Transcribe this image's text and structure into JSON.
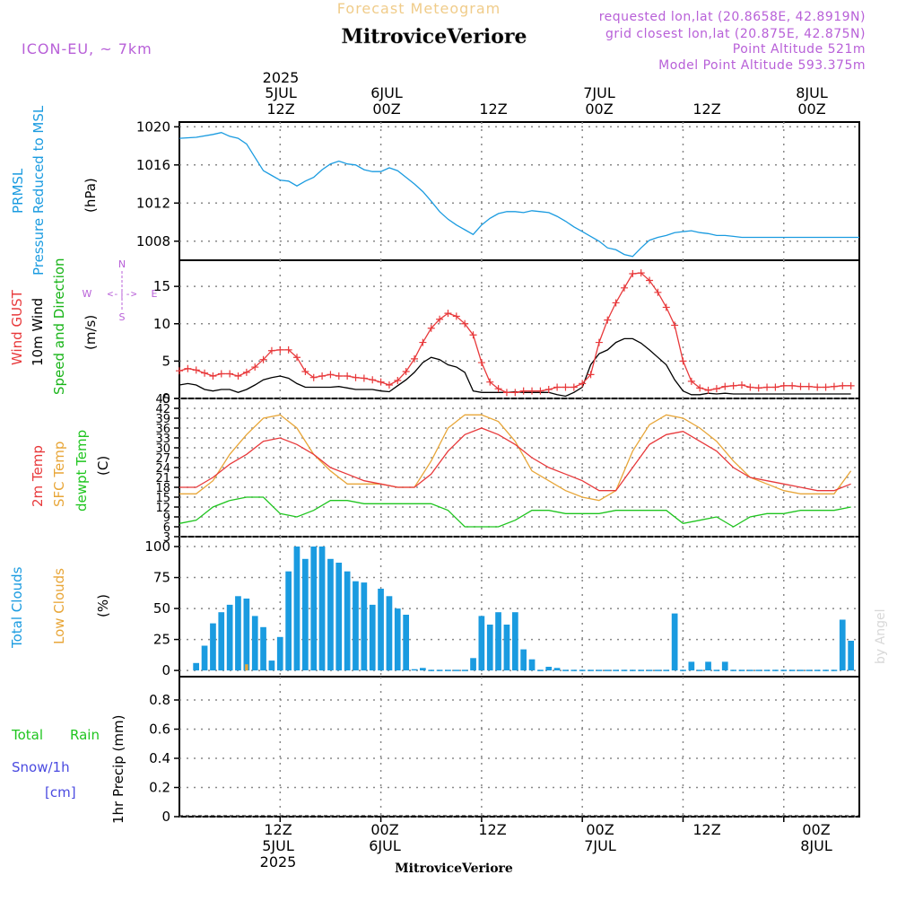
{
  "header": {
    "title": "Forecast Meteogram",
    "location": "MitroviceVeriore",
    "model": "ICON-EU, ~ 7km",
    "requested": "requested lon,lat (20.8658E, 42.8919N)",
    "closest": "grid closest lon,lat (20.875E, 42.875N)",
    "point_alt": "Point Altitude 521m",
    "model_alt": "Model Point Altitude 593.375m",
    "watermark": "by Angel"
  },
  "colors": {
    "pressure": "#1a9be0",
    "gust": "#e8393b",
    "wind": "#000000",
    "wind_dir_label": "#18b418",
    "temp2m": "#e8393b",
    "sfc_temp": "#e8a638",
    "dewpt": "#1fc51f",
    "total_clouds": "#1a9be0",
    "low_clouds": "#e8a638",
    "rain_label": "#1fc51f",
    "snow_label": "#4a4ae0",
    "header_purple": "#b860d8",
    "title_orange": "#f0cc8a"
  },
  "time_axis": {
    "top_labels": [
      {
        "line1": "2025",
        "line2": "5JUL",
        "line3": "12Z"
      },
      {
        "line1": "",
        "line2": "6JUL",
        "line3": "00Z"
      },
      {
        "line1": "",
        "line2": "",
        "line3": "12Z"
      },
      {
        "line1": "",
        "line2": "7JUL",
        "line3": "00Z"
      },
      {
        "line1": "",
        "line2": "",
        "line3": "12Z"
      },
      {
        "line1": "",
        "line2": "8JUL",
        "line3": "00Z"
      }
    ],
    "bottom_labels": [
      {
        "line1": "12Z",
        "line2": "5JUL",
        "line3": "2025"
      },
      {
        "line1": "00Z",
        "line2": "6JUL",
        "line3": ""
      },
      {
        "line1": "12Z",
        "line2": "",
        "line3": ""
      },
      {
        "line1": "00Z",
        "line2": "7JUL",
        "line3": ""
      },
      {
        "line1": "12Z",
        "line2": "",
        "line3": ""
      },
      {
        "line1": "00Z",
        "line2": "8JUL",
        "line3": ""
      }
    ],
    "bottom_location": "MitroviceVeriore"
  },
  "panels": {
    "pressure": {
      "label1": "PRMSL",
      "label2": "Pressure Reduced to MSL",
      "unit": "(hPa)",
      "ticks": [
        "1008",
        "1012",
        "1016",
        "1020"
      ]
    },
    "wind": {
      "label_gust": "Wind GUST",
      "label_wind": "10m Wind",
      "label_dir": "Speed and Direction",
      "unit": "(m/s)",
      "ticks": [
        "0",
        "5",
        "10",
        "15"
      ],
      "compass": {
        "n": "N",
        "s": "S",
        "w": "W",
        "e": "E"
      }
    },
    "temp": {
      "label_2m": "2m Temp",
      "label_sfc": "SFC Temp",
      "label_dew": "dewpt Temp",
      "unit": "(C)",
      "ticks": [
        "3",
        "6",
        "9",
        "12",
        "15",
        "18",
        "21",
        "24",
        "27",
        "30",
        "33",
        "36",
        "39",
        "42",
        "45"
      ]
    },
    "clouds": {
      "label_total": "Total Clouds",
      "label_low": "Low Clouds",
      "unit": "(%)",
      "ticks": [
        "0",
        "25",
        "50",
        "75",
        "100"
      ]
    },
    "precip": {
      "label_rain_a": "Total",
      "label_rain_b": "Rain",
      "label_snow": "Snow/1h",
      "label_cm": "[cm]",
      "axis_label": "1hr Precip (mm)",
      "ticks": [
        "0",
        "0.2",
        "0.4",
        "0.6",
        "0.8"
      ]
    }
  },
  "chart_data": {
    "type": "line",
    "x_unit": "hours from 2025-07-05 00Z",
    "x_range": [
      0,
      81
    ],
    "pressure_hPa": {
      "x": [
        0,
        2,
        4,
        5,
        6,
        7,
        8,
        9,
        10,
        11,
        12,
        13,
        14,
        15,
        16,
        17,
        18,
        19,
        20,
        21,
        22,
        23,
        24,
        25,
        26,
        27,
        28,
        29,
        30,
        31,
        32,
        33,
        34,
        35,
        36,
        37,
        38,
        39,
        40,
        41,
        42,
        43,
        44,
        45,
        46,
        47,
        48,
        49,
        50,
        51,
        52,
        53,
        54,
        55,
        56,
        57,
        58,
        59,
        60,
        61,
        62,
        63,
        64,
        65,
        66,
        67,
        68,
        69,
        70,
        71,
        72,
        73,
        74,
        75,
        76,
        77,
        78,
        79,
        80,
        81
      ],
      "y": [
        1018.8,
        1018.9,
        1019.2,
        1019.4,
        1019.0,
        1018.8,
        1018.2,
        1016.8,
        1015.4,
        1014.9,
        1014.4,
        1014.3,
        1013.8,
        1014.3,
        1014.7,
        1015.5,
        1016.1,
        1016.4,
        1016.1,
        1016.0,
        1015.5,
        1015.3,
        1015.3,
        1015.7,
        1015.4,
        1014.7,
        1014.0,
        1013.2,
        1012.2,
        1011.1,
        1010.3,
        1009.7,
        1009.2,
        1008.7,
        1009.7,
        1010.4,
        1010.9,
        1011.1,
        1011.1,
        1011.0,
        1011.2,
        1011.1,
        1011.0,
        1010.6,
        1010.1,
        1009.5,
        1009.0,
        1008.5,
        1008.0,
        1007.3,
        1007.1,
        1006.6,
        1006.4,
        1007.3,
        1008.1,
        1008.4,
        1008.6,
        1008.9,
        1009.0,
        1009.1,
        1008.9,
        1008.8,
        1008.6,
        1008.6,
        1008.5,
        1008.4,
        1008.4,
        1008.4,
        1008.4,
        1008.4,
        1008.4,
        1008.4,
        1008.4,
        1008.4,
        1008.4,
        1008.4,
        1008.4,
        1008.4,
        1008.4,
        1008.4
      ]
    },
    "wind_gust_ms": {
      "x": [
        0,
        1,
        2,
        3,
        4,
        5,
        6,
        7,
        8,
        9,
        10,
        11,
        12,
        13,
        14,
        15,
        16,
        17,
        18,
        19,
        20,
        21,
        22,
        23,
        24,
        25,
        26,
        27,
        28,
        29,
        30,
        31,
        32,
        33,
        34,
        35,
        36,
        37,
        38,
        39,
        40,
        41,
        42,
        43,
        44,
        45,
        46,
        47,
        48,
        49,
        50,
        51,
        52,
        53,
        54,
        55,
        56,
        57,
        58,
        59,
        60,
        61,
        62,
        63,
        64,
        65,
        66,
        67,
        68,
        69,
        70,
        71,
        72,
        73,
        74,
        75,
        76,
        77,
        78,
        79,
        80
      ],
      "y": [
        3.7,
        4.0,
        3.8,
        3.4,
        3.0,
        3.3,
        3.3,
        3.0,
        3.5,
        4.2,
        5.2,
        6.4,
        6.5,
        6.5,
        5.5,
        3.6,
        2.8,
        3.0,
        3.2,
        3.0,
        3.0,
        2.8,
        2.7,
        2.5,
        2.2,
        1.8,
        2.4,
        3.6,
        5.3,
        7.5,
        9.4,
        10.6,
        11.4,
        11.0,
        10.0,
        8.5,
        4.8,
        2.2,
        1.3,
        0.8,
        0.8,
        1.0,
        1.0,
        1.0,
        1.2,
        1.5,
        1.5,
        1.5,
        2.0,
        3.2,
        7.5,
        10.5,
        12.8,
        14.8,
        16.7,
        16.8,
        15.8,
        14.2,
        12.2,
        9.8,
        5.0,
        2.3,
        1.4,
        1.1,
        1.3,
        1.6,
        1.7,
        1.8,
        1.5,
        1.4,
        1.5,
        1.5,
        1.7,
        1.7,
        1.6,
        1.6,
        1.5,
        1.5,
        1.6,
        1.7,
        1.7
      ]
    },
    "wind_10m_ms": {
      "x": [
        0,
        1,
        2,
        3,
        4,
        5,
        6,
        7,
        8,
        9,
        10,
        11,
        12,
        13,
        14,
        15,
        16,
        17,
        18,
        19,
        20,
        21,
        22,
        23,
        24,
        25,
        26,
        27,
        28,
        29,
        30,
        31,
        32,
        33,
        34,
        35,
        36,
        37,
        38,
        39,
        40,
        41,
        42,
        43,
        44,
        45,
        46,
        47,
        48,
        49,
        50,
        51,
        52,
        53,
        54,
        55,
        56,
        57,
        58,
        59,
        60,
        61,
        62,
        63,
        64,
        65,
        66,
        67,
        68,
        69,
        70,
        71,
        72,
        73,
        74,
        75,
        76,
        77,
        78,
        79,
        80
      ],
      "y": [
        1.8,
        2.0,
        1.8,
        1.2,
        1.0,
        1.2,
        1.2,
        0.8,
        1.2,
        1.8,
        2.5,
        2.8,
        3.0,
        2.7,
        2.0,
        1.5,
        1.5,
        1.5,
        1.5,
        1.6,
        1.4,
        1.2,
        1.2,
        1.2,
        1.0,
        0.9,
        1.7,
        2.5,
        3.5,
        4.8,
        5.5,
        5.2,
        4.5,
        4.2,
        3.5,
        1.0,
        0.8,
        0.8,
        0.8,
        0.8,
        0.9,
        0.8,
        0.8,
        0.8,
        0.8,
        0.5,
        0.3,
        0.8,
        1.5,
        4.5,
        6.0,
        6.5,
        7.5,
        8.0,
        8.0,
        7.4,
        6.5,
        5.5,
        4.5,
        2.5,
        1.0,
        0.5,
        0.5,
        0.7,
        0.6,
        0.7,
        0.6,
        0.6,
        0.6,
        0.6,
        0.6,
        0.6,
        0.6,
        0.6,
        0.6,
        0.6,
        0.6,
        0.6,
        0.6,
        0.6,
        0.6
      ]
    },
    "temp_2m_C": {
      "x": [
        0,
        2,
        4,
        6,
        8,
        10,
        12,
        14,
        16,
        18,
        20,
        22,
        24,
        26,
        28,
        30,
        32,
        34,
        36,
        38,
        40,
        42,
        44,
        46,
        48,
        50,
        52,
        54,
        56,
        58,
        60,
        62,
        64,
        66,
        68,
        70,
        72,
        74,
        76,
        78,
        80
      ],
      "y": [
        18,
        18,
        21,
        25,
        28,
        32,
        33,
        31,
        28,
        24,
        22,
        20,
        19,
        18,
        18,
        22,
        29,
        34,
        36,
        34,
        31,
        27,
        24,
        22,
        20,
        17,
        17,
        24,
        31,
        34,
        35,
        32,
        29,
        24,
        21,
        20,
        19,
        18,
        17,
        17,
        19
      ]
    },
    "temp_sfc_C": {
      "x": [
        0,
        2,
        4,
        6,
        8,
        10,
        12,
        14,
        16,
        18,
        20,
        22,
        24,
        26,
        28,
        30,
        32,
        34,
        36,
        38,
        40,
        42,
        44,
        46,
        48,
        50,
        52,
        54,
        56,
        58,
        60,
        62,
        64,
        66,
        68,
        70,
        72,
        74,
        76,
        78,
        80
      ],
      "y": [
        16,
        16,
        20,
        28,
        34,
        39,
        40,
        36,
        28,
        23,
        19,
        19,
        19,
        18,
        18,
        26,
        36,
        40,
        40,
        38,
        32,
        23,
        20,
        17,
        15,
        14,
        17,
        29,
        37,
        40,
        39,
        36,
        32,
        26,
        21,
        19,
        17,
        16,
        16,
        16,
        23
      ]
    },
    "dewpt_C": {
      "x": [
        0,
        2,
        4,
        6,
        8,
        10,
        12,
        14,
        16,
        18,
        20,
        22,
        24,
        26,
        28,
        30,
        32,
        34,
        36,
        38,
        40,
        42,
        44,
        46,
        48,
        50,
        52,
        54,
        56,
        58,
        60,
        62,
        64,
        66,
        68,
        70,
        72,
        74,
        76,
        78,
        80
      ],
      "y": [
        7,
        8,
        12,
        14,
        15,
        15,
        10,
        9,
        11,
        14,
        14,
        13,
        13,
        13,
        13,
        13,
        11,
        6,
        6,
        6,
        8,
        11,
        11,
        10,
        10,
        10,
        11,
        11,
        11,
        11,
        7,
        8,
        9,
        6,
        9,
        10,
        10,
        11,
        11,
        11,
        12
      ]
    },
    "total_clouds_pct": {
      "x": [
        2,
        3,
        4,
        5,
        6,
        7,
        8,
        9,
        10,
        11,
        12,
        13,
        14,
        15,
        16,
        17,
        18,
        19,
        20,
        21,
        22,
        23,
        24,
        25,
        26,
        27,
        28,
        29,
        30,
        31,
        32,
        33,
        34,
        35,
        36,
        37,
        38,
        39,
        40,
        41,
        42,
        43,
        44,
        45,
        46,
        47,
        48,
        49,
        50,
        51,
        52,
        53,
        54,
        55,
        56,
        57,
        58,
        59,
        60,
        61,
        62,
        63,
        64,
        65,
        66,
        67,
        68,
        69,
        70,
        71,
        72,
        73,
        74,
        75,
        76,
        77,
        78,
        79,
        80
      ],
      "y": [
        6,
        20,
        38,
        47,
        53,
        60,
        58,
        44,
        35,
        8,
        27,
        80,
        100,
        90,
        100,
        100,
        90,
        87,
        80,
        72,
        71,
        53,
        66,
        60,
        50,
        45,
        1,
        2,
        0,
        0,
        0,
        0,
        0,
        10,
        44,
        37,
        47,
        37,
        47,
        17,
        9,
        0,
        3,
        2,
        0,
        0,
        0,
        0,
        0,
        0,
        0,
        0,
        0,
        0,
        0,
        0,
        0,
        46,
        0,
        7,
        0,
        7,
        0,
        7,
        0,
        0,
        0,
        0,
        0,
        0,
        0,
        0,
        0,
        0,
        0,
        0,
        0,
        41,
        24
      ]
    },
    "low_clouds_pct": {
      "x": [
        8
      ],
      "y": [
        5
      ]
    },
    "precip_mm": {
      "x": [],
      "y": []
    },
    "ylim_pressure": [
      1006,
      1020.5
    ],
    "ylim_wind": [
      0,
      18.5
    ],
    "ylim_temp": [
      3,
      45
    ],
    "ylim_clouds": [
      0,
      100
    ],
    "ylim_precip": [
      0,
      0.96
    ]
  }
}
